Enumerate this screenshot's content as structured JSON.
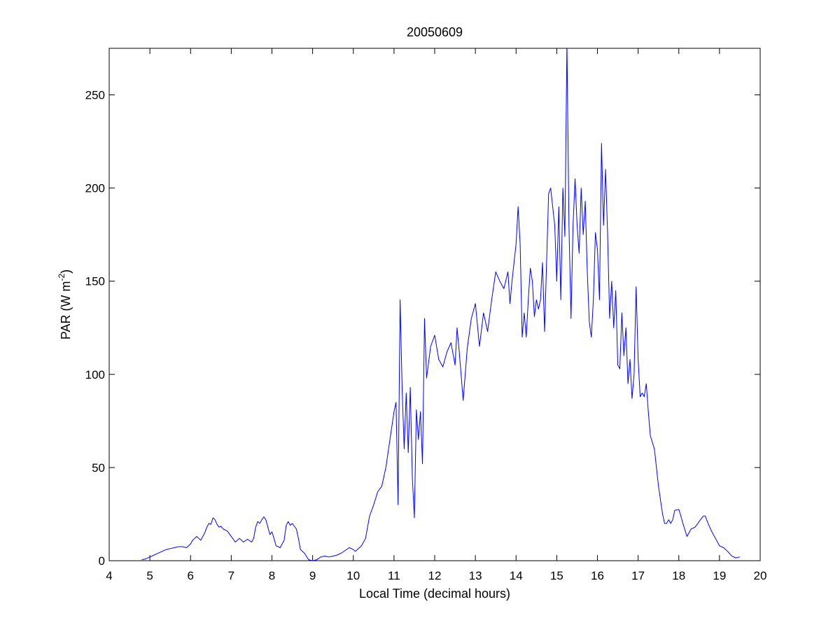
{
  "chart_data": {
    "type": "line",
    "title": "20050609",
    "xlabel": "Local Time (decimal hours)",
    "ylabel_base": "PAR (W m",
    "ylabel_sup": "-2",
    "ylabel_close": ")",
    "xlim": [
      4,
      20
    ],
    "ylim": [
      0,
      275
    ],
    "xticks": [
      4,
      5,
      6,
      7,
      8,
      9,
      10,
      11,
      12,
      13,
      14,
      15,
      16,
      17,
      18,
      19,
      20
    ],
    "yticks": [
      0,
      50,
      100,
      150,
      200,
      250
    ],
    "grid": false,
    "box": true,
    "series": [
      {
        "color": "#0000ff",
        "points": [
          [
            4.8,
            0.5
          ],
          [
            4.9,
            1.0
          ],
          [
            5.0,
            2.0
          ],
          [
            5.1,
            3.0
          ],
          [
            5.2,
            4.0
          ],
          [
            5.3,
            5.0
          ],
          [
            5.4,
            6.0
          ],
          [
            5.5,
            6.5
          ],
          [
            5.6,
            7.0
          ],
          [
            5.7,
            7.5
          ],
          [
            5.8,
            7.5
          ],
          [
            5.9,
            7.0
          ],
          [
            6.0,
            9.0
          ],
          [
            6.05,
            11.0
          ],
          [
            6.1,
            12.0
          ],
          [
            6.15,
            13.0
          ],
          [
            6.2,
            12.0
          ],
          [
            6.25,
            11.0
          ],
          [
            6.3,
            13.0
          ],
          [
            6.35,
            15.0
          ],
          [
            6.4,
            18.0
          ],
          [
            6.45,
            20.0
          ],
          [
            6.5,
            19.5
          ],
          [
            6.55,
            23.0
          ],
          [
            6.6,
            22.0
          ],
          [
            6.65,
            19.5
          ],
          [
            6.7,
            18.0
          ],
          [
            6.75,
            18.5
          ],
          [
            6.8,
            17.0
          ],
          [
            6.9,
            16.0
          ],
          [
            7.0,
            13.0
          ],
          [
            7.1,
            10.0
          ],
          [
            7.2,
            12.0
          ],
          [
            7.3,
            10.0
          ],
          [
            7.4,
            11.5
          ],
          [
            7.5,
            10.0
          ],
          [
            7.55,
            12.0
          ],
          [
            7.6,
            18.0
          ],
          [
            7.65,
            21.0
          ],
          [
            7.7,
            20.0
          ],
          [
            7.75,
            22.0
          ],
          [
            7.8,
            23.5
          ],
          [
            7.85,
            22.0
          ],
          [
            7.9,
            18.0
          ],
          [
            7.95,
            14.0
          ],
          [
            8.0,
            15.5
          ],
          [
            8.05,
            12.0
          ],
          [
            8.1,
            8.0
          ],
          [
            8.2,
            7.0
          ],
          [
            8.3,
            11.0
          ],
          [
            8.35,
            19.0
          ],
          [
            8.4,
            21.0
          ],
          [
            8.45,
            19.0
          ],
          [
            8.5,
            20.0
          ],
          [
            8.55,
            18.5
          ],
          [
            8.6,
            17.0
          ],
          [
            8.65,
            12.0
          ],
          [
            8.7,
            6.0
          ],
          [
            8.8,
            4.0
          ],
          [
            8.9,
            0.5
          ],
          [
            9.0,
            0.0
          ],
          [
            9.1,
            0.5
          ],
          [
            9.2,
            2.0
          ],
          [
            9.3,
            2.5
          ],
          [
            9.4,
            2.0
          ],
          [
            9.5,
            2.5
          ],
          [
            9.6,
            3.0
          ],
          [
            9.7,
            4.0
          ],
          [
            9.8,
            5.5
          ],
          [
            9.9,
            7.0
          ],
          [
            10.0,
            6.0
          ],
          [
            10.05,
            5.0
          ],
          [
            10.1,
            6.0
          ],
          [
            10.2,
            8.0
          ],
          [
            10.3,
            12.0
          ],
          [
            10.4,
            24.0
          ],
          [
            10.5,
            30.0
          ],
          [
            10.6,
            37.0
          ],
          [
            10.7,
            40.0
          ],
          [
            10.8,
            50.0
          ],
          [
            10.9,
            65.0
          ],
          [
            11.0,
            80.0
          ],
          [
            11.05,
            85.0
          ],
          [
            11.1,
            30.0
          ],
          [
            11.15,
            140.0
          ],
          [
            11.2,
            92.0
          ],
          [
            11.25,
            60.0
          ],
          [
            11.3,
            90.0
          ],
          [
            11.35,
            58.0
          ],
          [
            11.4,
            93.0
          ],
          [
            11.45,
            45.0
          ],
          [
            11.5,
            23.0
          ],
          [
            11.55,
            81.0
          ],
          [
            11.6,
            65.0
          ],
          [
            11.65,
            80.0
          ],
          [
            11.7,
            52.0
          ],
          [
            11.75,
            130.0
          ],
          [
            11.8,
            98.0
          ],
          [
            11.9,
            115.0
          ],
          [
            12.0,
            121.0
          ],
          [
            12.1,
            108.0
          ],
          [
            12.2,
            104.0
          ],
          [
            12.3,
            112.0
          ],
          [
            12.4,
            117.0
          ],
          [
            12.5,
            105.0
          ],
          [
            12.55,
            125.0
          ],
          [
            12.6,
            113.0
          ],
          [
            12.7,
            86.0
          ],
          [
            12.8,
            114.0
          ],
          [
            12.9,
            130.0
          ],
          [
            13.0,
            138.0
          ],
          [
            13.1,
            115.0
          ],
          [
            13.2,
            133.0
          ],
          [
            13.3,
            123.0
          ],
          [
            13.4,
            140.0
          ],
          [
            13.5,
            155.0
          ],
          [
            13.6,
            150.0
          ],
          [
            13.7,
            146.0
          ],
          [
            13.8,
            155.0
          ],
          [
            13.85,
            138.0
          ],
          [
            13.9,
            150.0
          ],
          [
            14.0,
            170.0
          ],
          [
            14.05,
            190.0
          ],
          [
            14.1,
            170.0
          ],
          [
            14.15,
            120.0
          ],
          [
            14.2,
            133.0
          ],
          [
            14.25,
            120.0
          ],
          [
            14.3,
            140.0
          ],
          [
            14.35,
            157.0
          ],
          [
            14.4,
            150.0
          ],
          [
            14.45,
            131.0
          ],
          [
            14.5,
            140.0
          ],
          [
            14.55,
            135.0
          ],
          [
            14.6,
            140.0
          ],
          [
            14.65,
            160.0
          ],
          [
            14.7,
            123.0
          ],
          [
            14.75,
            160.0
          ],
          [
            14.8,
            197.0
          ],
          [
            14.85,
            200.0
          ],
          [
            14.9,
            190.0
          ],
          [
            14.95,
            180.0
          ],
          [
            15.0,
            150.0
          ],
          [
            15.05,
            190.0
          ],
          [
            15.1,
            140.0
          ],
          [
            15.15,
            200.0
          ],
          [
            15.2,
            174.0
          ],
          [
            15.25,
            278.0
          ],
          [
            15.3,
            180.0
          ],
          [
            15.35,
            130.0
          ],
          [
            15.4,
            180.0
          ],
          [
            15.45,
            205.0
          ],
          [
            15.5,
            180.0
          ],
          [
            15.55,
            165.0
          ],
          [
            15.6,
            200.0
          ],
          [
            15.65,
            175.0
          ],
          [
            15.7,
            193.0
          ],
          [
            15.75,
            155.0
          ],
          [
            15.8,
            128.0
          ],
          [
            15.85,
            120.0
          ],
          [
            15.9,
            140.0
          ],
          [
            15.95,
            176.0
          ],
          [
            16.0,
            167.0
          ],
          [
            16.05,
            140.0
          ],
          [
            16.1,
            224.0
          ],
          [
            16.15,
            180.0
          ],
          [
            16.2,
            210.0
          ],
          [
            16.25,
            175.0
          ],
          [
            16.3,
            130.0
          ],
          [
            16.35,
            150.0
          ],
          [
            16.4,
            125.0
          ],
          [
            16.45,
            145.0
          ],
          [
            16.5,
            105.0
          ],
          [
            16.55,
            103.0
          ],
          [
            16.6,
            133.0
          ],
          [
            16.65,
            110.0
          ],
          [
            16.7,
            125.0
          ],
          [
            16.75,
            95.0
          ],
          [
            16.8,
            108.0
          ],
          [
            16.85,
            87.0
          ],
          [
            16.9,
            100.0
          ],
          [
            16.95,
            147.0
          ],
          [
            17.0,
            108.0
          ],
          [
            17.05,
            88.0
          ],
          [
            17.1,
            90.0
          ],
          [
            17.15,
            88.0
          ],
          [
            17.2,
            95.0
          ],
          [
            17.25,
            80.0
          ],
          [
            17.3,
            67.0
          ],
          [
            17.4,
            60.0
          ],
          [
            17.5,
            40.0
          ],
          [
            17.6,
            25.0
          ],
          [
            17.65,
            20.0
          ],
          [
            17.7,
            20.0
          ],
          [
            17.75,
            22.0
          ],
          [
            17.8,
            20.0
          ],
          [
            17.85,
            22.0
          ],
          [
            17.9,
            27.0
          ],
          [
            18.0,
            27.5
          ],
          [
            18.05,
            24.0
          ],
          [
            18.1,
            20.0
          ],
          [
            18.2,
            13.0
          ],
          [
            18.3,
            17.0
          ],
          [
            18.4,
            18.0
          ],
          [
            18.5,
            21.0
          ],
          [
            18.6,
            24.0
          ],
          [
            18.65,
            24.0
          ],
          [
            18.7,
            21.0
          ],
          [
            18.8,
            16.0
          ],
          [
            18.9,
            12.0
          ],
          [
            19.0,
            8.0
          ],
          [
            19.1,
            7.0
          ],
          [
            19.2,
            5.0
          ],
          [
            19.3,
            2.5
          ],
          [
            19.4,
            1.5
          ],
          [
            19.5,
            2.0
          ]
        ]
      }
    ]
  }
}
